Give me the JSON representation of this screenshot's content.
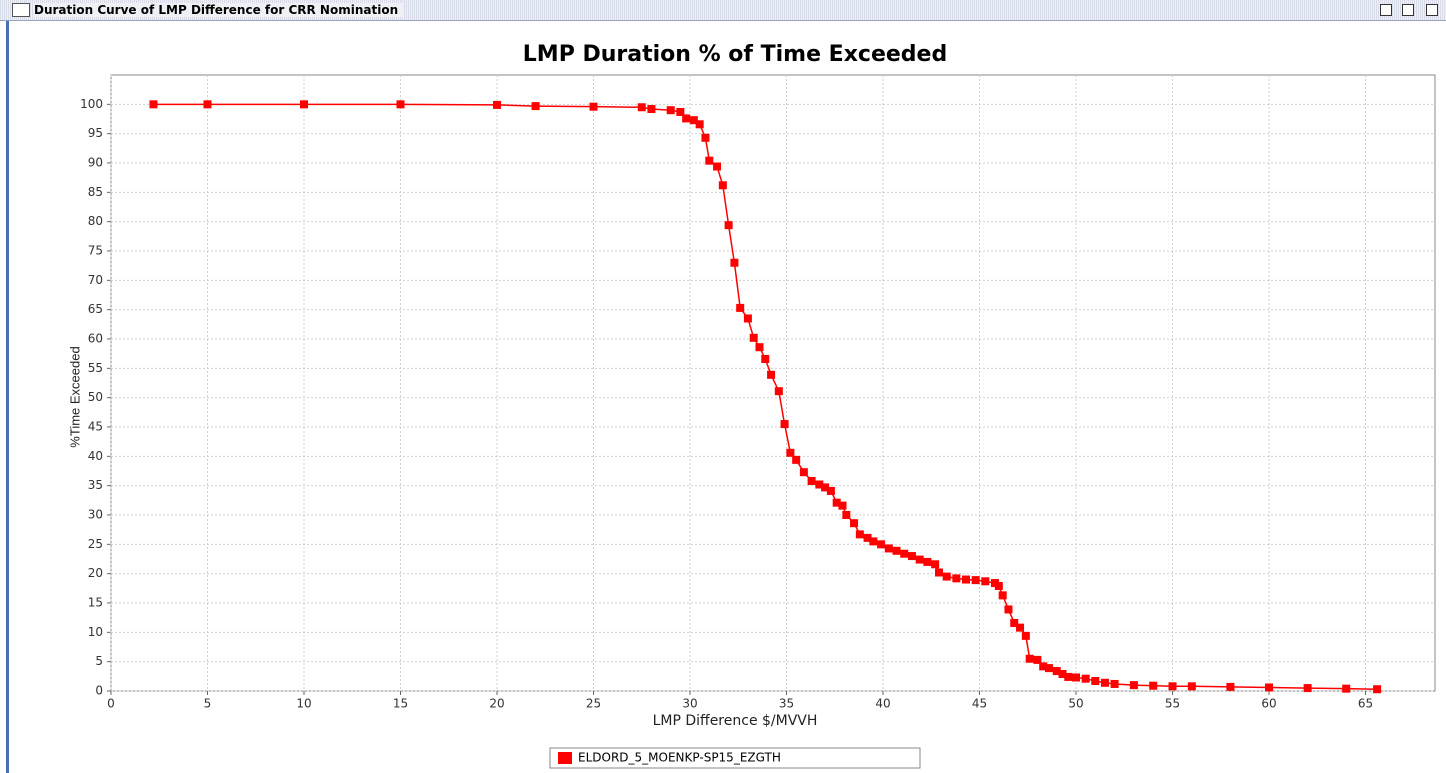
{
  "window": {
    "title": "Duration Curve of LMP Difference for CRR Nomination"
  },
  "chart_data": {
    "type": "line",
    "title": "LMP Duration % of Time Exceeded",
    "x_label": "LMP Difference $/MVVH",
    "y_label": "%Time Exceeded",
    "x": [
      2.2,
      5,
      10,
      15,
      20,
      22,
      25,
      27.5,
      28,
      29,
      29.5,
      29.8,
      30.2,
      30.5,
      30.8,
      31,
      31.4,
      31.7,
      32,
      32.3,
      32.6,
      33,
      33.3,
      33.6,
      33.9,
      34.2,
      34.6,
      34.9,
      35.2,
      35.5,
      35.9,
      36.3,
      36.7,
      37.0,
      37.3,
      37.6,
      37.9,
      38.1,
      38.5,
      38.8,
      39.2,
      39.5,
      39.9,
      40.3,
      40.7,
      41.1,
      41.5,
      41.9,
      42.3,
      42.7,
      42.9,
      43.3,
      43.8,
      44.3,
      44.8,
      45.3,
      45.8,
      46.0,
      46.2,
      46.5,
      46.8,
      47.1,
      47.4,
      47.6,
      48.0,
      48.3,
      48.6,
      49.0,
      49.3,
      49.6,
      50.0,
      50.5,
      51,
      51.5,
      52,
      53,
      54,
      55,
      56,
      58,
      60,
      62,
      64,
      65.6
    ],
    "series": [
      {
        "name": "ELDORD_5_MOENKP-SP15_EZGTH",
        "color": "#ff0000",
        "values": [
          100,
          100,
          100,
          100,
          99.9,
          99.7,
          99.6,
          99.5,
          99.2,
          99.0,
          98.7,
          97.6,
          97.3,
          96.6,
          94.3,
          90.4,
          89.4,
          86.2,
          79.4,
          73.0,
          65.3,
          63.5,
          60.2,
          58.6,
          56.6,
          53.9,
          51.1,
          45.5,
          40.6,
          39.4,
          37.3,
          35.8,
          35.2,
          34.7,
          34.1,
          32.1,
          31.6,
          30.0,
          28.6,
          26.7,
          26.1,
          25.5,
          25.0,
          24.3,
          23.9,
          23.4,
          23.0,
          22.4,
          22.0,
          21.6,
          20.2,
          19.5,
          19.2,
          19.0,
          18.9,
          18.7,
          18.4,
          17.9,
          16.3,
          13.9,
          11.6,
          10.8,
          9.4,
          5.5,
          5.3,
          4.2,
          3.9,
          3.4,
          2.9,
          2.4,
          2.3,
          2.1,
          1.7,
          1.4,
          1.2,
          1.0,
          0.9,
          0.8,
          0.8,
          0.7,
          0.6,
          0.5,
          0.4,
          0.3
        ]
      }
    ],
    "xlim": [
      0,
      68.6
    ],
    "ylim": [
      0,
      105
    ],
    "xticks": [
      0,
      5,
      10,
      15,
      20,
      25,
      30,
      35,
      40,
      45,
      50,
      55,
      60,
      65
    ],
    "yticks": [
      0,
      5,
      10,
      15,
      20,
      25,
      30,
      35,
      40,
      45,
      50,
      55,
      60,
      65,
      70,
      75,
      80,
      85,
      90,
      95,
      100
    ],
    "grid": true,
    "legend": "bottom"
  }
}
